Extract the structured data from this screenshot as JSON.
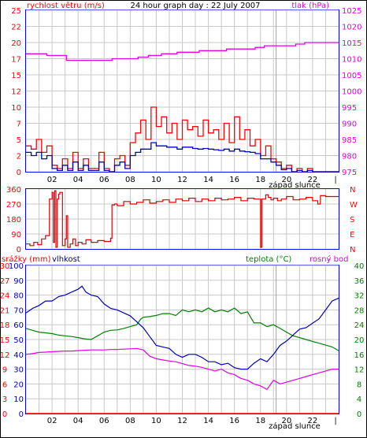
{
  "chart_data": [
    {
      "type": "line",
      "title": "24 hour graph day : 22 July 2007",
      "left_axis_label": "rychlost větru (m/s)",
      "right_axis_label": "tlak (hPa)",
      "sunset_label": "západ slunce",
      "x_ticks": [
        "02",
        "04",
        "06",
        "08",
        "10",
        "12",
        "14",
        "16",
        "18",
        "20",
        "22"
      ],
      "y_ticks_left": [
        "0",
        "2.5",
        "5",
        "7.5",
        "10",
        "12.5",
        "15",
        "17.5",
        "20",
        "22.5",
        "25"
      ],
      "y_ticks_left_labels": [
        "0",
        "2",
        "5",
        "7",
        "10",
        "12",
        "15",
        "17",
        "20",
        "22",
        "25"
      ],
      "y_ticks_right": [
        "975",
        "980",
        "985",
        "990",
        "995",
        "1000",
        "1005",
        "1010",
        "1015",
        "1020",
        "1025"
      ],
      "ylim_left": [
        0,
        25
      ],
      "ylim_right": [
        975,
        1025
      ],
      "xlim": [
        0,
        24
      ],
      "sunset_hour": 19.2,
      "colors": {
        "gust": "#ff0000",
        "speed": "#0000c0",
        "pressure": "#e000e0",
        "frame": "#0000ff",
        "grid": "#c0c0c0"
      },
      "series": [
        {
          "key": "pressure",
          "axis": "right",
          "x": [
            0,
            1.5,
            1.6,
            3.0,
            3.1,
            6.5,
            6.6,
            8.5,
            8.6,
            9.3,
            9.4,
            10.3,
            10.4,
            11.5,
            11.6,
            13.2,
            13.3,
            15.3,
            15.4,
            16.5,
            16.6,
            17.5,
            17.6,
            18.2,
            18.3,
            19.8,
            19.9,
            20.6,
            20.7,
            21.3,
            21.4,
            24
          ],
          "values": [
            1011.5,
            1011.5,
            1011,
            1011,
            1009.5,
            1009.5,
            1010,
            1010,
            1010.5,
            1010.5,
            1011,
            1011,
            1011.5,
            1011.5,
            1012,
            1012,
            1012.5,
            1012.5,
            1013,
            1013,
            1013,
            1013,
            1013.5,
            1013.5,
            1014,
            1014,
            1014,
            1014,
            1014.5,
            1014.5,
            1015,
            1015
          ]
        },
        {
          "key": "gust",
          "axis": "left",
          "x": [
            0,
            0.4,
            0.8,
            1.2,
            1.6,
            2.0,
            2.4,
            2.8,
            3.2,
            3.6,
            4.0,
            4.4,
            4.8,
            5.2,
            5.6,
            6.0,
            6.4,
            6.8,
            7.2,
            7.6,
            8.0,
            8.4,
            8.8,
            9.2,
            9.6,
            10.0,
            10.4,
            10.8,
            11.2,
            11.6,
            12.0,
            12.4,
            12.8,
            13.2,
            13.6,
            14.0,
            14.4,
            14.8,
            15.2,
            15.6,
            16.0,
            16.4,
            16.8,
            17.2,
            17.6,
            18.0,
            18.4,
            18.8,
            19.2,
            19.6,
            20.0,
            20.4,
            20.8,
            21.2,
            21.6,
            22.0,
            24
          ],
          "values": [
            4,
            3.5,
            5,
            3,
            4,
            1,
            0.5,
            2,
            0.5,
            3,
            0.5,
            2,
            0.5,
            0.5,
            3,
            0.5,
            0,
            2,
            2.5,
            1,
            4.5,
            6,
            8,
            5,
            10,
            7,
            8.5,
            6,
            7.5,
            5,
            8,
            6.5,
            7,
            5.5,
            8,
            6,
            6.5,
            5,
            7.5,
            4.5,
            8.5,
            5,
            6.5,
            4,
            5,
            2.5,
            4,
            2,
            1.5,
            0.5,
            1,
            0,
            0.5,
            0,
            0.5,
            0,
            0
          ]
        },
        {
          "key": "speed",
          "axis": "left",
          "x": [
            0,
            0.4,
            0.8,
            1.2,
            1.6,
            2.0,
            2.4,
            2.8,
            3.2,
            3.6,
            4.0,
            4.4,
            4.8,
            5.2,
            5.6,
            6.0,
            6.4,
            6.8,
            7.2,
            7.6,
            8.0,
            8.4,
            8.8,
            9.2,
            9.6,
            10.0,
            10.4,
            10.8,
            11.2,
            11.6,
            12.0,
            12.4,
            12.8,
            13.2,
            13.6,
            14.0,
            14.4,
            14.8,
            15.2,
            15.6,
            16.0,
            16.4,
            16.8,
            17.2,
            17.6,
            18.0,
            18.4,
            18.8,
            19.2,
            19.6,
            20.0,
            20.4,
            20.8,
            21.2,
            21.6,
            22.0,
            24
          ],
          "values": [
            3,
            2.5,
            3,
            2,
            2.5,
            0.5,
            0.2,
            1,
            0.2,
            1.5,
            0.2,
            1,
            0.2,
            0.2,
            1.5,
            0.2,
            0,
            1,
            1.5,
            0.5,
            2.5,
            3,
            3.5,
            3.5,
            4.5,
            4,
            4,
            3.8,
            3.8,
            3.5,
            3.8,
            3.8,
            3.6,
            3.5,
            3.6,
            3.5,
            3.4,
            3.3,
            3.5,
            3.2,
            3.5,
            3.2,
            3.1,
            3,
            2.8,
            2,
            2,
            1.5,
            1,
            0.3,
            0.5,
            0,
            0.2,
            0,
            0.2,
            0,
            0
          ]
        }
      ]
    },
    {
      "type": "line",
      "y_ticks": [
        "0",
        "90",
        "180",
        "270",
        "360"
      ],
      "compass_labels": [
        "N",
        "E",
        "S",
        "W",
        "N"
      ],
      "ylim": [
        0,
        360
      ],
      "xlim": [
        0,
        24
      ],
      "series": [
        {
          "key": "direction",
          "x": [
            0,
            0.3,
            0.6,
            0.9,
            1.2,
            1.5,
            1.8,
            2.0,
            2.1,
            2.2,
            2.3,
            2.4,
            2.5,
            2.6,
            2.8,
            3.0,
            3.1,
            3.2,
            3.4,
            3.6,
            3.8,
            4.0,
            4.3,
            4.6,
            5.0,
            5.5,
            6.0,
            6.5,
            6.6,
            6.8,
            7.0,
            7.5,
            8.0,
            8.5,
            9.0,
            9.5,
            10.0,
            10.5,
            11.0,
            11.5,
            12.0,
            12.5,
            13.0,
            13.5,
            14.0,
            14.5,
            15.0,
            15.5,
            16.0,
            16.5,
            17.0,
            17.5,
            17.9,
            18.0,
            18.1,
            18.4,
            18.6,
            18.8,
            19.0,
            19.3,
            19.6,
            20.0,
            20.5,
            21.0,
            21.5,
            22.0,
            22.4,
            22.6,
            23.0,
            24
          ],
          "values": [
            30,
            20,
            40,
            25,
            60,
            80,
            300,
            340,
            40,
            350,
            10,
            300,
            330,
            340,
            20,
            60,
            200,
            10,
            30,
            60,
            20,
            40,
            30,
            55,
            40,
            50,
            45,
            65,
            265,
            270,
            260,
            285,
            270,
            280,
            295,
            275,
            285,
            295,
            280,
            300,
            290,
            305,
            285,
            300,
            290,
            305,
            295,
            300,
            310,
            290,
            305,
            300,
            300,
            10,
            300,
            325,
            310,
            295,
            305,
            290,
            300,
            315,
            295,
            300,
            310,
            290,
            270,
            320,
            315,
            315
          ]
        }
      ]
    },
    {
      "type": "line",
      "left_axis_label_rain": "srážky (mm)",
      "left_axis_label_humidity": "vlhkost",
      "right_axis_label_temp": "teplota (°C)",
      "right_axis_label_dew": "rosný bod",
      "sunset_label": "západ slunce",
      "x_ticks": [
        "02",
        "04",
        "06",
        "08",
        "10",
        "12",
        "14",
        "16",
        "18",
        "20",
        "22"
      ],
      "y_ticks_left_humidity": [
        "0",
        "10",
        "20",
        "30",
        "40",
        "50",
        "60",
        "70",
        "80",
        "90",
        "100"
      ],
      "y_ticks_left_rain": [
        "0",
        "3",
        "6",
        "9",
        "12",
        "15",
        "18",
        "21",
        "24",
        "27",
        "30"
      ],
      "y_ticks_right": [
        "0",
        "4",
        "8",
        "12",
        "16",
        "20",
        "24",
        "28",
        "32",
        "36",
        "40"
      ],
      "ylim_left": [
        0,
        100
      ],
      "ylim_right": [
        0,
        40
      ],
      "xlim": [
        0,
        24
      ],
      "series": [
        {
          "key": "rain",
          "axis": "left",
          "x": [
            0,
            24
          ],
          "values": [
            0,
            0
          ]
        },
        {
          "key": "humidity",
          "axis": "left",
          "x": [
            0,
            0.5,
            1.0,
            1.5,
            2.0,
            2.5,
            3.0,
            3.5,
            4.0,
            4.3,
            4.6,
            5.0,
            5.5,
            6.0,
            6.5,
            7.0,
            7.5,
            8.0,
            8.5,
            9.0,
            9.5,
            10.0,
            10.5,
            11.0,
            11.5,
            12.0,
            12.5,
            13.0,
            13.5,
            14.0,
            14.5,
            15.0,
            15.5,
            16.0,
            16.5,
            17.0,
            17.5,
            18.0,
            18.5,
            19.0,
            19.5,
            20.0,
            20.5,
            21.0,
            21.5,
            22.0,
            22.5,
            23.0,
            23.5,
            24
          ],
          "values": [
            68,
            71,
            73,
            76,
            76,
            79,
            80,
            82,
            84,
            86,
            82,
            80,
            79,
            74,
            71,
            70,
            68,
            66,
            62,
            58,
            52,
            46,
            45,
            44,
            40,
            38,
            40,
            40,
            38,
            35,
            35,
            33,
            34,
            31,
            30,
            30,
            34,
            37,
            35,
            40,
            46,
            49,
            53,
            57,
            58,
            61,
            64,
            70,
            76,
            78
          ]
        },
        {
          "key": "temperature",
          "axis": "right",
          "x": [
            0,
            0.5,
            1.0,
            1.5,
            2.0,
            2.5,
            3.0,
            3.5,
            4.0,
            4.5,
            5.0,
            5.5,
            6.0,
            6.5,
            7.0,
            7.5,
            8.0,
            8.5,
            8.8,
            9.0,
            9.5,
            10.0,
            10.5,
            11.0,
            11.5,
            12.0,
            12.5,
            13.0,
            13.5,
            14.0,
            14.5,
            15.0,
            15.5,
            16.0,
            16.5,
            17.0,
            17.5,
            18.0,
            18.5,
            19.0,
            19.5,
            20.0,
            20.5,
            21.0,
            21.5,
            22.0,
            22.5,
            23.0,
            23.5,
            24
          ],
          "values": [
            23,
            22.5,
            22,
            21.8,
            21.6,
            21.2,
            21,
            20.8,
            20.5,
            20.2,
            20,
            21,
            22,
            22.5,
            22.6,
            23,
            23.5,
            24,
            25.5,
            26,
            26.2,
            26.5,
            27,
            27,
            26.5,
            28,
            27.5,
            28,
            27.5,
            28.5,
            27.5,
            28,
            27.5,
            28.5,
            27,
            27.5,
            24.5,
            24.5,
            23.5,
            24,
            23,
            22,
            21,
            20.5,
            20,
            19.5,
            19,
            18.5,
            18,
            17
          ]
        },
        {
          "key": "dew_point",
          "axis": "right",
          "x": [
            0,
            0.5,
            1.0,
            1.5,
            2.0,
            2.5,
            3.0,
            3.5,
            4.0,
            4.5,
            5.0,
            5.5,
            6.0,
            6.5,
            7.0,
            7.5,
            8.0,
            8.5,
            9.0,
            9.5,
            10.0,
            10.5,
            11.0,
            11.5,
            12.0,
            12.5,
            13.0,
            13.5,
            14.0,
            14.5,
            15.0,
            15.5,
            16.0,
            16.5,
            17.0,
            17.5,
            18.0,
            18.5,
            19.0,
            19.5,
            20.0,
            20.5,
            21.0,
            21.5,
            22.0,
            22.5,
            23.0,
            23.5,
            24
          ],
          "values": [
            16,
            16.2,
            16.5,
            16.6,
            16.7,
            16.8,
            16.9,
            16.9,
            17,
            17.1,
            17.2,
            17.2,
            17.2,
            17.3,
            17.3,
            17.4,
            17.5,
            17.6,
            17.2,
            15.5,
            14.8,
            14.5,
            14.2,
            14,
            13.5,
            13,
            12.8,
            12.5,
            12,
            11.5,
            12,
            11,
            10.5,
            9.5,
            9,
            8,
            7.5,
            6.5,
            9,
            8,
            8.5,
            9,
            9.5,
            10,
            10.5,
            11,
            11.5,
            12,
            12
          ]
        }
      ]
    }
  ]
}
